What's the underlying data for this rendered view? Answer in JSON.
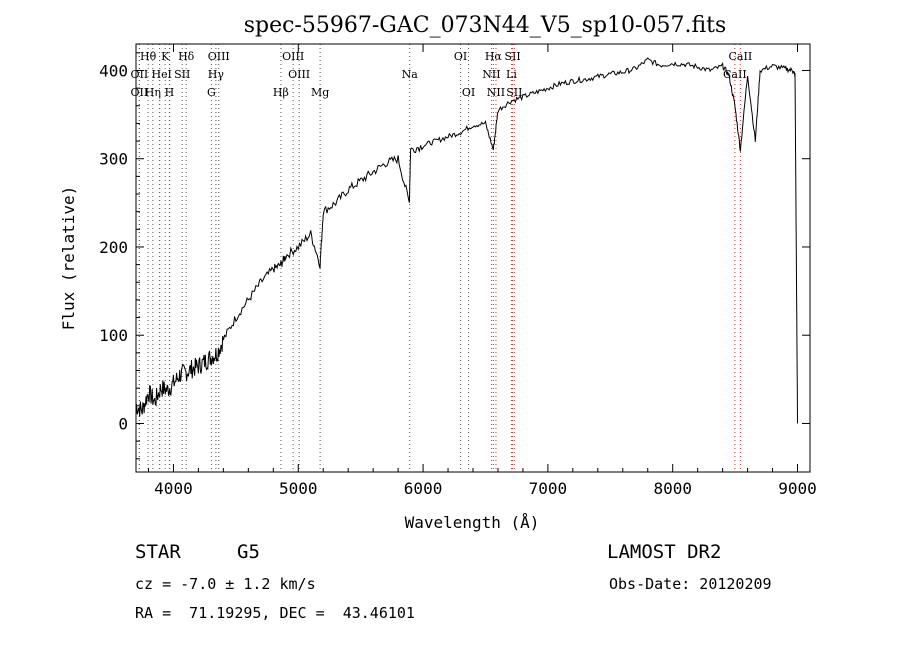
{
  "chart_data": {
    "type": "line",
    "title": "spec-55967-GAC_073N44_V5_sp10-057.fits",
    "xlabel": "Wavelength (Å)",
    "ylabel": "Flux (relative)",
    "xlim": [
      3700,
      9100
    ],
    "ylim": [
      -55,
      430
    ],
    "x_ticks": [
      4000,
      5000,
      6000,
      7000,
      8000,
      9000
    ],
    "y_ticks": [
      0,
      100,
      200,
      300,
      400
    ],
    "grid": false,
    "series": [
      {
        "x": [
          3700,
          3750,
          3800,
          3850,
          3900,
          3950,
          4000,
          4050,
          4100,
          4150,
          4200,
          4250,
          4300,
          4350,
          4400,
          4500,
          4600,
          4700,
          4800,
          4861,
          4900,
          5000,
          5100,
          5175,
          5200,
          5300,
          5400,
          5500,
          5600,
          5700,
          5800,
          5890,
          5900,
          6000,
          6100,
          6200,
          6300,
          6400,
          6500,
          6563,
          6600,
          6700,
          6800,
          6900,
          7000,
          7100,
          7200,
          7300,
          7400,
          7500,
          7600,
          7700,
          7800,
          7900,
          8000,
          8100,
          8200,
          8300,
          8400,
          8450,
          8498,
          8542,
          8600,
          8662,
          8700,
          8800,
          8900,
          8960,
          8980,
          9000
        ],
        "y": [
          20,
          15,
          35,
          25,
          40,
          38,
          45,
          55,
          58,
          62,
          65,
          70,
          75,
          80,
          95,
          120,
          140,
          160,
          175,
          180,
          190,
          200,
          215,
          180,
          240,
          250,
          265,
          275,
          285,
          295,
          300,
          250,
          310,
          315,
          320,
          325,
          330,
          338,
          340,
          310,
          355,
          365,
          370,
          375,
          380,
          385,
          388,
          390,
          393,
          396,
          398,
          402,
          412,
          406,
          408,
          407,
          404,
          400,
          405,
          395,
          360,
          310,
          395,
          320,
          400,
          405,
          402,
          400,
          395,
          0
        ]
      }
    ],
    "spectral_lines": [
      {
        "label": "Hθ",
        "wavelength": 3797,
        "row": 0
      },
      {
        "label": "K",
        "wavelength": 3934,
        "row": 0
      },
      {
        "label": "Hδ",
        "wavelength": 4102,
        "row": 0
      },
      {
        "label": "OIII",
        "wavelength": 4363,
        "row": 0
      },
      {
        "label": "OIII",
        "wavelength": 4959,
        "row": 0
      },
      {
        "label": "OI",
        "wavelength": 6300,
        "row": 0
      },
      {
        "label": "Hα",
        "wavelength": 6563,
        "row": 0
      },
      {
        "label": "SII",
        "wavelength": 6717,
        "row": 0
      },
      {
        "label": "CaII",
        "wavelength": 8542,
        "row": 0
      },
      {
        "label": "OII",
        "wavelength": 3727,
        "row": 1
      },
      {
        "label": "He",
        "wavelength": 3889,
        "row": 1
      },
      {
        "label": "I",
        "wavelength": 3970,
        "row": 1
      },
      {
        "label": "SII",
        "wavelength": 4070,
        "row": 1
      },
      {
        "label": "Hγ",
        "wavelength": 4340,
        "row": 1
      },
      {
        "label": "OIII",
        "wavelength": 5007,
        "row": 1
      },
      {
        "label": "Na",
        "wavelength": 5893,
        "row": 1
      },
      {
        "label": "NII",
        "wavelength": 6548,
        "row": 1
      },
      {
        "label": "Li",
        "wavelength": 6708,
        "row": 1
      },
      {
        "label": "CaII",
        "wavelength": 8498,
        "row": 1
      },
      {
        "label": "OII",
        "wavelength": 3727,
        "row": 2
      },
      {
        "label": "Hη",
        "wavelength": 3835,
        "row": 2
      },
      {
        "label": "H",
        "wavelength": 3968,
        "row": 2
      },
      {
        "label": "G",
        "wavelength": 4304,
        "row": 2
      },
      {
        "label": "Hβ",
        "wavelength": 4861,
        "row": 2
      },
      {
        "label": "Mg",
        "wavelength": 5175,
        "row": 2
      },
      {
        "label": "OI",
        "wavelength": 6364,
        "row": 2
      },
      {
        "label": "NII",
        "wavelength": 6584,
        "row": 2
      },
      {
        "label": "SII",
        "wavelength": 6731,
        "row": 2
      }
    ],
    "line_colors": {
      "spectrum": "#000000",
      "marker_default": "#555555",
      "marker_red": "#cc3333"
    }
  },
  "info": {
    "object_class": "STAR",
    "subclass": "G5",
    "survey": "LAMOST DR2",
    "redshift": "cz = -7.0 ± 1.2 km/s",
    "obs_date": "Obs-Date: 20120209",
    "coords": "RA =  71.19295, DEC =  43.46101"
  }
}
